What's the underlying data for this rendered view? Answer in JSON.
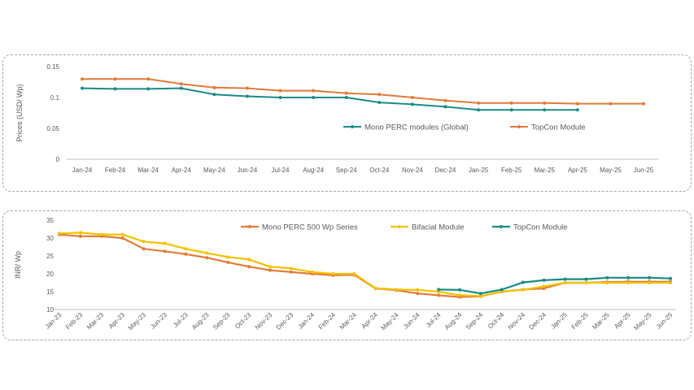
{
  "chart_data": [
    {
      "type": "line",
      "ylabel": "Prices (USD/ Wp)",
      "ylim": [
        0,
        0.15
      ],
      "yticks": [
        "0",
        "0.05",
        "0.1",
        "0.15"
      ],
      "grid": false,
      "legend_position": "inside-right",
      "categories": [
        "Jan-24",
        "Feb-24",
        "Mar-24",
        "Apr-24",
        "May-24",
        "Jun-24",
        "Jul-24",
        "Aug-24",
        "Sep-24",
        "Oct-24",
        "Nov-24",
        "Dec-24",
        "Jan-25",
        "Feb-25",
        "Mar-25",
        "Apr-25",
        "May-25",
        "Jun-25"
      ],
      "series": [
        {
          "name": "Mono PERC modules (Global)",
          "color": "#1a8a84",
          "values": [
            0.115,
            0.114,
            0.114,
            0.115,
            0.105,
            0.102,
            0.1,
            0.1,
            0.1,
            0.092,
            0.089,
            0.085,
            0.08,
            0.08,
            0.08,
            0.08,
            null,
            null
          ]
        },
        {
          "name": "TopCon Module",
          "color": "#e07b39",
          "values": [
            0.13,
            0.13,
            0.13,
            0.122,
            0.116,
            0.115,
            0.111,
            0.111,
            0.107,
            0.105,
            0.1,
            0.095,
            0.091,
            0.091,
            0.091,
            0.09,
            0.09,
            0.09
          ]
        }
      ]
    },
    {
      "type": "line",
      "ylabel": "INR/ Wp",
      "ylim": [
        10,
        35
      ],
      "yticks": [
        "10",
        "15",
        "20",
        "25",
        "30",
        "35"
      ],
      "grid": false,
      "legend_position": "top",
      "categories": [
        "Jan-23",
        "Feb-23",
        "Mar-23",
        "Apr-23",
        "May-23",
        "Jun-23",
        "Jul-23",
        "Aug-23",
        "Sep-23",
        "Oct-23",
        "Nov-23",
        "Dec-23",
        "Jan-24",
        "Feb-24",
        "Mar-24",
        "Apr-24",
        "May-24",
        "Jun-24",
        "Jul-24",
        "Aug-24",
        "Sep-24",
        "Oct-24",
        "Nov-24",
        "Dec-24",
        "Jan-25",
        "Feb-25",
        "Mar-25",
        "Apr-25",
        "May-25",
        "Jun-25"
      ],
      "series": [
        {
          "name": "Mono PERC 500 Wp Series",
          "color": "#e07b39",
          "values": [
            31,
            30.5,
            30.5,
            30,
            27,
            26.3,
            25.5,
            24.5,
            23.2,
            22,
            21,
            20.5,
            20,
            19.6,
            19.7,
            15.9,
            15.4,
            14.5,
            14,
            13.5,
            13.7,
            15,
            15.6,
            15.9,
            17.5,
            17.5,
            17.7,
            17.8,
            17.8,
            17.8
          ]
        },
        {
          "name": "Bifacial Module",
          "color": "#f2c200",
          "values": [
            31.3,
            31.5,
            31,
            31,
            29,
            28.5,
            27,
            25.8,
            24.7,
            24,
            22,
            21.5,
            20.5,
            20,
            20,
            16,
            15.6,
            15.5,
            15,
            14,
            13.8,
            15,
            15.5,
            16.5,
            17.5,
            17.5,
            17.5,
            17.5,
            17.5,
            17.5
          ]
        },
        {
          "name": "TopCon Module",
          "color": "#1a8a84",
          "values": [
            null,
            null,
            null,
            null,
            null,
            null,
            null,
            null,
            null,
            null,
            null,
            null,
            null,
            null,
            null,
            null,
            null,
            null,
            15.6,
            15.5,
            14.5,
            15.6,
            17.6,
            18.2,
            18.5,
            18.5,
            18.9,
            18.9,
            18.9,
            18.7
          ]
        }
      ]
    }
  ]
}
